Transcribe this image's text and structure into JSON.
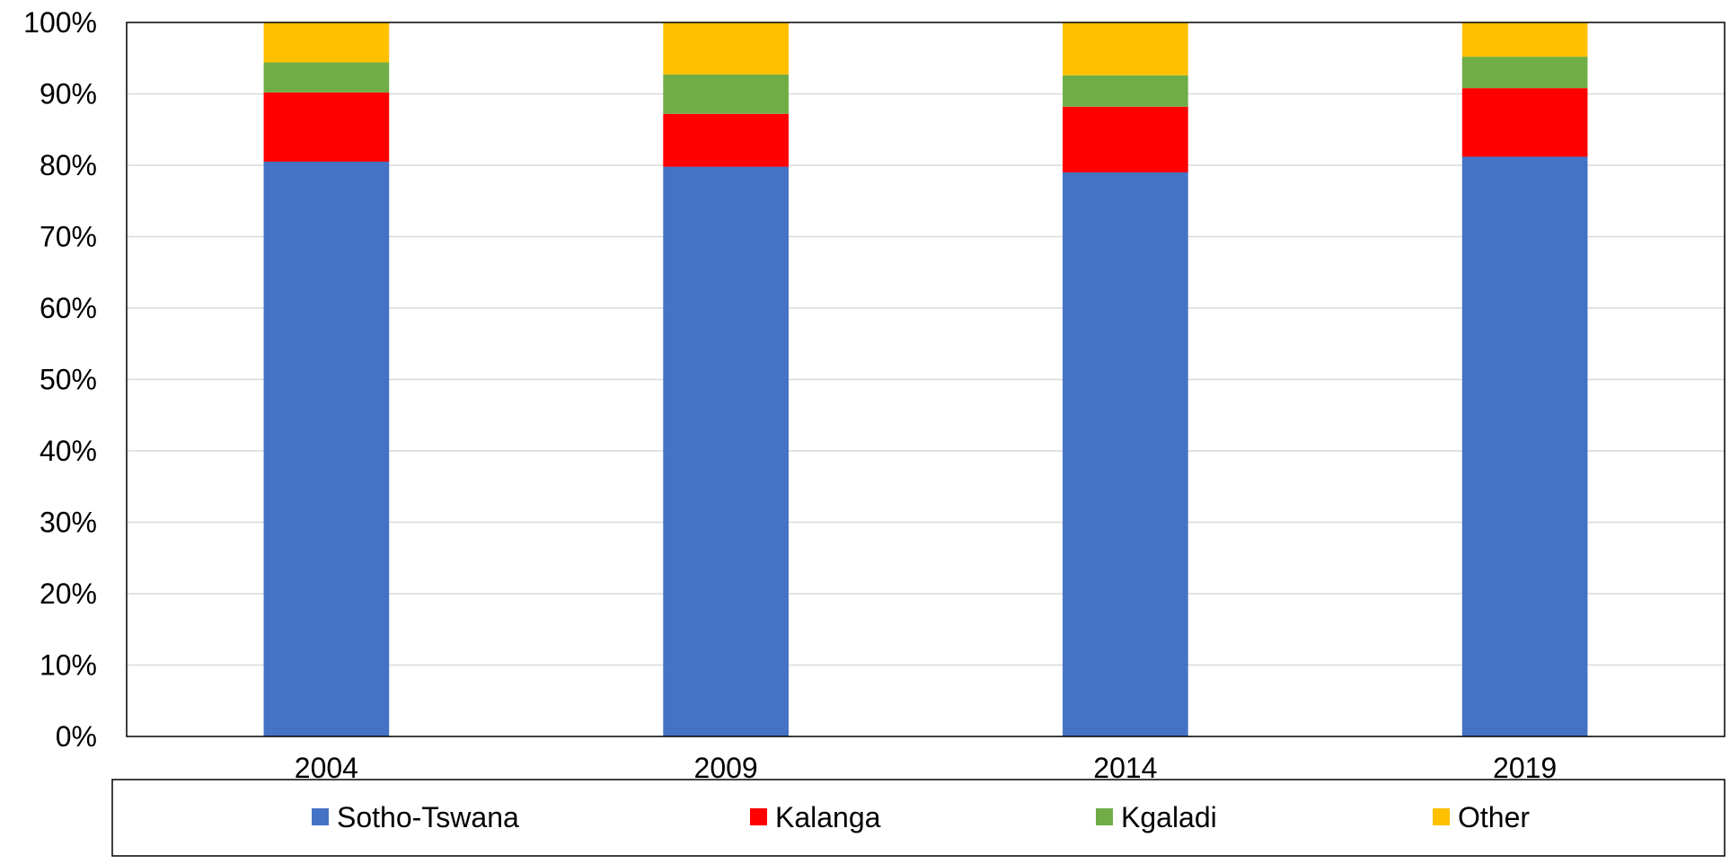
{
  "chart_data": {
    "type": "bar",
    "stacked": true,
    "percent_stacked": true,
    "categories": [
      "2004",
      "2009",
      "2014",
      "2019"
    ],
    "series": [
      {
        "name": "Sotho-Tswana",
        "color": "#4472C4",
        "values": [
          80.5,
          79.8,
          79.0,
          81.2
        ]
      },
      {
        "name": "Kalanga",
        "color": "#FF0000",
        "values": [
          9.7,
          7.4,
          9.2,
          9.6
        ]
      },
      {
        "name": "Kgaladi",
        "color": "#70AD47",
        "values": [
          4.2,
          5.5,
          4.4,
          4.4
        ]
      },
      {
        "name": "Other",
        "color": "#FFC000",
        "values": [
          5.6,
          7.3,
          7.4,
          4.8
        ]
      }
    ],
    "y_ticks": [
      "0%",
      "10%",
      "20%",
      "30%",
      "40%",
      "50%",
      "60%",
      "70%",
      "80%",
      "90%",
      "100%"
    ],
    "ylim": [
      0,
      100
    ],
    "grid": true,
    "legend_position": "bottom",
    "title": "",
    "xlabel": "",
    "ylabel": ""
  }
}
